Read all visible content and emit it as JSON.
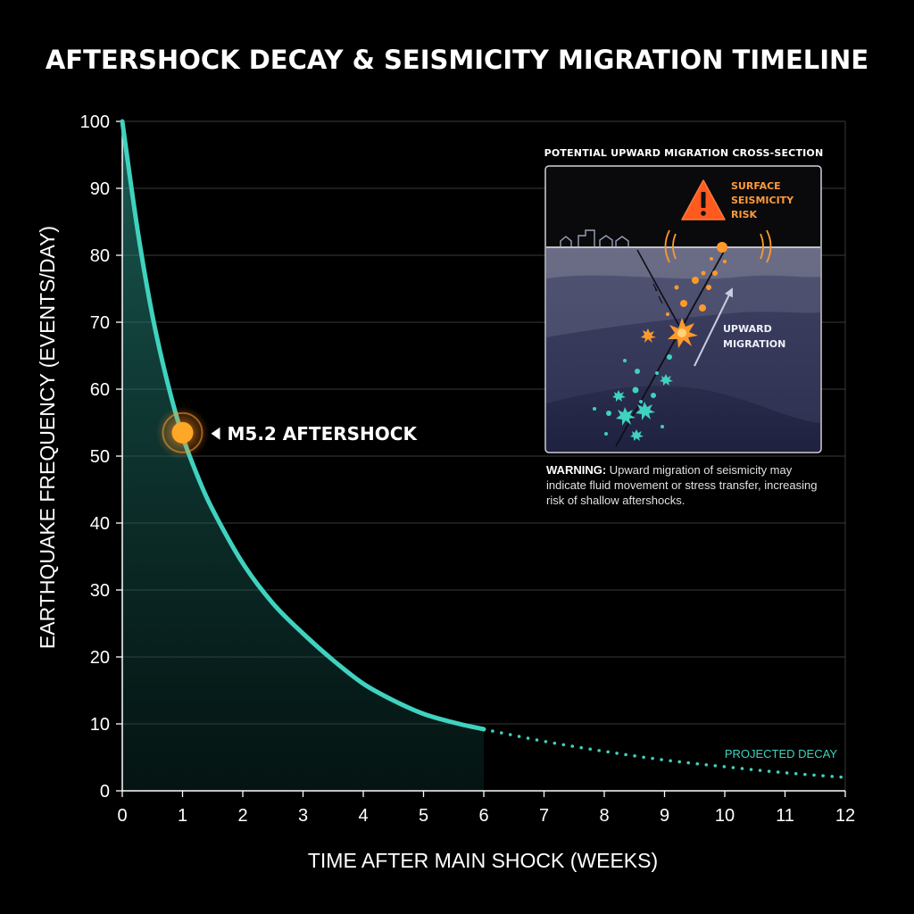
{
  "chart_data": {
    "type": "line",
    "title": "AFTERSHOCK DECAY & SEISMICITY MIGRATION TIMELINE",
    "xlabel": "TIME AFTER MAIN SHOCK (WEEKS)",
    "ylabel": "EARTHQUAKE FREQUENCY (EVENTS/DAY)",
    "xlim": [
      0,
      12
    ],
    "ylim": [
      0,
      100
    ],
    "xticks": [
      0,
      1,
      2,
      3,
      4,
      5,
      6,
      7,
      8,
      9,
      10,
      11,
      12
    ],
    "yticks": [
      0,
      10,
      20,
      30,
      40,
      50,
      60,
      70,
      80,
      90,
      100
    ],
    "grid": true,
    "series": [
      {
        "style": "solid",
        "color": "#3fd2bf",
        "x": [
          0,
          0.25,
          0.5,
          0.75,
          1,
          1.25,
          1.5,
          2,
          2.5,
          3,
          3.5,
          4,
          4.5,
          5,
          5.5,
          6
        ],
        "y": [
          100,
          84,
          71,
          61,
          53,
          47,
          42,
          34,
          28,
          23.5,
          19.5,
          16,
          13.5,
          11.5,
          10.2,
          9.2
        ]
      },
      {
        "name": "PROJECTED DECAY",
        "style": "dotted",
        "color": "#3fd2bf",
        "x": [
          6,
          7,
          8,
          9,
          10,
          11,
          12
        ],
        "y": [
          9.2,
          7.4,
          5.9,
          4.6,
          3.6,
          2.7,
          2
        ]
      }
    ],
    "annotations": [
      {
        "label": "M5.2 AFTERSHOCK",
        "x": 1,
        "y": 53.5,
        "color": "#ffa726"
      }
    ]
  },
  "inset": {
    "title": "POTENTIAL UPWARD MIGRATION CROSS-SECTION",
    "risk_label": [
      "SURFACE",
      "SEISMICITY",
      "RISK"
    ],
    "migration_label": [
      "UPWARD",
      "MIGRATION"
    ],
    "warning_icon": "warning-triangle-icon",
    "warning_heading": "WARNING:",
    "warning_text": "Upward migration of seismicity may indicate fluid movement or stress transfer, increasing risk of shallow aftershocks."
  },
  "colors": {
    "curve": "#3fd2bf",
    "aftershock": "#ffa726",
    "grid": "#3a3a3a",
    "background": "#000000"
  }
}
